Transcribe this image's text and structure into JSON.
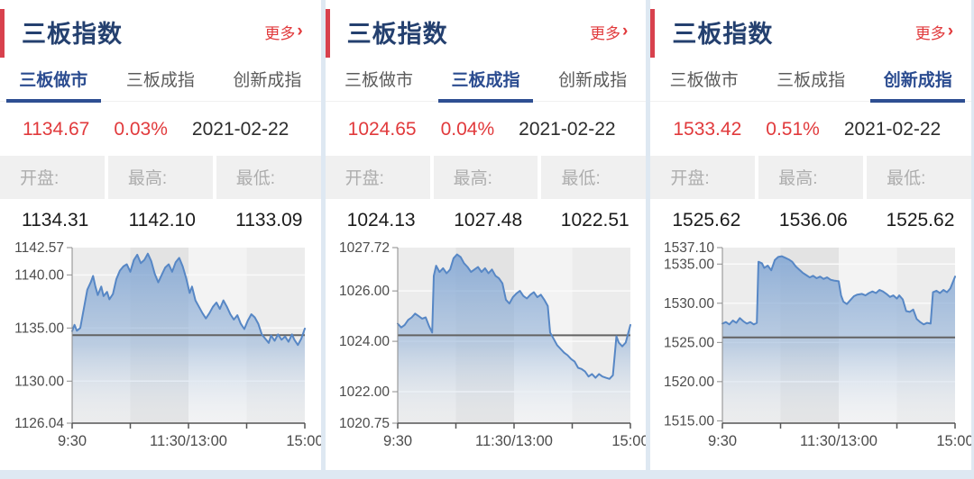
{
  "panels": [
    {
      "title": "三板指数",
      "more_label": "更多",
      "more_arrow": "›",
      "tabs": [
        {
          "label": "三板做市",
          "active": true
        },
        {
          "label": "三板成指",
          "active": false
        },
        {
          "label": "创新成指",
          "active": false
        }
      ],
      "quote": {
        "last": "1134.67",
        "change_pct": "0.03%",
        "date": "2021-02-22"
      },
      "stats": {
        "open_label": "开盘:",
        "high_label": "最高:",
        "low_label": "最低:",
        "open": "1134.31",
        "high": "1142.10",
        "low": "1133.09"
      }
    },
    {
      "title": "三板指数",
      "more_label": "更多",
      "more_arrow": "›",
      "tabs": [
        {
          "label": "三板做市",
          "active": false
        },
        {
          "label": "三板成指",
          "active": true
        },
        {
          "label": "创新成指",
          "active": false
        }
      ],
      "quote": {
        "last": "1024.65",
        "change_pct": "0.04%",
        "date": "2021-02-22"
      },
      "stats": {
        "open_label": "开盘:",
        "high_label": "最高:",
        "low_label": "最低:",
        "open": "1024.13",
        "high": "1027.48",
        "low": "1022.51"
      }
    },
    {
      "title": "三板指数",
      "more_label": "更多",
      "more_arrow": "›",
      "tabs": [
        {
          "label": "三板做市",
          "active": false
        },
        {
          "label": "三板成指",
          "active": false
        },
        {
          "label": "创新成指",
          "active": true
        }
      ],
      "quote": {
        "last": "1533.42",
        "change_pct": "0.51%",
        "date": "2021-02-22"
      },
      "stats": {
        "open_label": "开盘:",
        "high_label": "最高:",
        "low_label": "最低:",
        "open": "1525.62",
        "high": "1536.06",
        "low": "1525.62"
      }
    }
  ],
  "colors": {
    "accent_red": "#e13a3c",
    "title_blue": "#24406f",
    "active_tab_blue": "#2b4c90",
    "line_blue": "#5787c5",
    "prev_close_gray": "#636363",
    "band_light": "#ececec",
    "band_dark": "#e3e3e3",
    "band_lighter": "#f3f3f3",
    "page_bg": "#dee8f2"
  },
  "chart_data": [
    {
      "type": "area",
      "title": "三板做市",
      "ylim": [
        1126.04,
        1142.57
      ],
      "yticks": [
        {
          "v": 1142.57,
          "label": "1142.57"
        },
        {
          "v": 1140.0,
          "label": "1140.00"
        },
        {
          "v": 1135.0,
          "label": "1135.00"
        },
        {
          "v": 1130.0,
          "label": "1130.00"
        },
        {
          "v": 1126.04,
          "label": "1126.04"
        }
      ],
      "xticks": [
        {
          "pos": 0,
          "label": "9:30"
        },
        {
          "pos": 0.5,
          "label": "11:30/13:00"
        },
        {
          "pos": 1,
          "label": "15:00"
        }
      ],
      "prev_close": 1134.33,
      "line_color": "#5787c5",
      "band_colors": [
        "#ececec",
        "#e3e3e3",
        "#f3f3f3",
        "#ececec"
      ],
      "points": [
        [
          0,
          1134.7
        ],
        [
          0.01,
          1135.3
        ],
        [
          0.02,
          1134.75
        ],
        [
          0.035,
          1135.0
        ],
        [
          0.05,
          1136.8
        ],
        [
          0.065,
          1138.6
        ],
        [
          0.08,
          1139.3
        ],
        [
          0.09,
          1139.9
        ],
        [
          0.1,
          1138.9
        ],
        [
          0.11,
          1138.1
        ],
        [
          0.125,
          1138.9
        ],
        [
          0.135,
          1138.0
        ],
        [
          0.15,
          1138.4
        ],
        [
          0.16,
          1137.7
        ],
        [
          0.175,
          1138.2
        ],
        [
          0.19,
          1139.6
        ],
        [
          0.205,
          1140.4
        ],
        [
          0.22,
          1140.8
        ],
        [
          0.235,
          1141.0
        ],
        [
          0.25,
          1140.3
        ],
        [
          0.265,
          1141.4
        ],
        [
          0.28,
          1141.9
        ],
        [
          0.295,
          1141.1
        ],
        [
          0.31,
          1141.4
        ],
        [
          0.325,
          1142.0
        ],
        [
          0.34,
          1141.3
        ],
        [
          0.355,
          1140.1
        ],
        [
          0.37,
          1139.3
        ],
        [
          0.385,
          1140.0
        ],
        [
          0.4,
          1140.7
        ],
        [
          0.415,
          1141.0
        ],
        [
          0.43,
          1140.3
        ],
        [
          0.445,
          1141.2
        ],
        [
          0.46,
          1141.6
        ],
        [
          0.475,
          1140.8
        ],
        [
          0.49,
          1139.7
        ],
        [
          0.505,
          1138.3
        ],
        [
          0.515,
          1138.9
        ],
        [
          0.53,
          1137.6
        ],
        [
          0.545,
          1137.0
        ],
        [
          0.56,
          1136.4
        ],
        [
          0.575,
          1135.9
        ],
        [
          0.59,
          1136.4
        ],
        [
          0.605,
          1137.0
        ],
        [
          0.62,
          1137.4
        ],
        [
          0.635,
          1136.8
        ],
        [
          0.65,
          1137.6
        ],
        [
          0.665,
          1137.0
        ],
        [
          0.68,
          1136.3
        ],
        [
          0.695,
          1135.8
        ],
        [
          0.71,
          1136.2
        ],
        [
          0.725,
          1135.4
        ],
        [
          0.74,
          1134.9
        ],
        [
          0.755,
          1135.7
        ],
        [
          0.77,
          1136.3
        ],
        [
          0.785,
          1136.0
        ],
        [
          0.8,
          1135.4
        ],
        [
          0.815,
          1134.4
        ],
        [
          0.83,
          1134.0
        ],
        [
          0.845,
          1133.6
        ],
        [
          0.855,
          1134.3
        ],
        [
          0.87,
          1133.8
        ],
        [
          0.885,
          1134.4
        ],
        [
          0.9,
          1133.9
        ],
        [
          0.915,
          1134.2
        ],
        [
          0.93,
          1133.7
        ],
        [
          0.945,
          1134.4
        ],
        [
          0.955,
          1133.9
        ],
        [
          0.97,
          1133.4
        ],
        [
          0.985,
          1134.0
        ],
        [
          1,
          1134.95
        ]
      ]
    },
    {
      "type": "area",
      "title": "三板成指",
      "ylim": [
        1020.75,
        1027.72
      ],
      "yticks": [
        {
          "v": 1027.72,
          "label": "1027.72"
        },
        {
          "v": 1026.0,
          "label": "1026.00"
        },
        {
          "v": 1024.0,
          "label": "1024.00"
        },
        {
          "v": 1022.0,
          "label": "1022.00"
        },
        {
          "v": 1020.75,
          "label": "1020.75"
        }
      ],
      "xticks": [
        {
          "pos": 0,
          "label": "9:30"
        },
        {
          "pos": 0.5,
          "label": "11:30/13:00"
        },
        {
          "pos": 1,
          "label": "15:00"
        }
      ],
      "prev_close": 1024.24,
      "line_color": "#5787c5",
      "band_colors": [
        "#ececec",
        "#e3e3e3",
        "#f3f3f3",
        "#ececec"
      ],
      "points": [
        [
          0,
          1024.7
        ],
        [
          0.015,
          1024.55
        ],
        [
          0.03,
          1024.65
        ],
        [
          0.045,
          1024.85
        ],
        [
          0.06,
          1024.95
        ],
        [
          0.075,
          1025.1
        ],
        [
          0.09,
          1025.0
        ],
        [
          0.105,
          1024.9
        ],
        [
          0.12,
          1024.95
        ],
        [
          0.135,
          1024.6
        ],
        [
          0.148,
          1024.35
        ],
        [
          0.155,
          1026.6
        ],
        [
          0.165,
          1027.0
        ],
        [
          0.18,
          1026.75
        ],
        [
          0.195,
          1026.9
        ],
        [
          0.21,
          1026.7
        ],
        [
          0.225,
          1026.85
        ],
        [
          0.24,
          1027.3
        ],
        [
          0.255,
          1027.45
        ],
        [
          0.27,
          1027.35
        ],
        [
          0.285,
          1027.1
        ],
        [
          0.3,
          1026.95
        ],
        [
          0.315,
          1026.75
        ],
        [
          0.33,
          1026.85
        ],
        [
          0.345,
          1026.95
        ],
        [
          0.36,
          1026.75
        ],
        [
          0.375,
          1026.9
        ],
        [
          0.39,
          1026.7
        ],
        [
          0.405,
          1026.85
        ],
        [
          0.42,
          1026.6
        ],
        [
          0.435,
          1026.5
        ],
        [
          0.45,
          1026.3
        ],
        [
          0.465,
          1025.65
        ],
        [
          0.48,
          1025.5
        ],
        [
          0.495,
          1025.75
        ],
        [
          0.51,
          1025.9
        ],
        [
          0.525,
          1026.0
        ],
        [
          0.54,
          1025.8
        ],
        [
          0.555,
          1025.7
        ],
        [
          0.57,
          1025.85
        ],
        [
          0.585,
          1025.95
        ],
        [
          0.6,
          1025.75
        ],
        [
          0.615,
          1025.85
        ],
        [
          0.63,
          1025.65
        ],
        [
          0.645,
          1025.4
        ],
        [
          0.655,
          1024.35
        ],
        [
          0.67,
          1024.1
        ],
        [
          0.685,
          1023.85
        ],
        [
          0.7,
          1023.7
        ],
        [
          0.715,
          1023.55
        ],
        [
          0.73,
          1023.45
        ],
        [
          0.745,
          1023.3
        ],
        [
          0.76,
          1023.2
        ],
        [
          0.775,
          1022.95
        ],
        [
          0.79,
          1022.9
        ],
        [
          0.805,
          1022.8
        ],
        [
          0.82,
          1022.6
        ],
        [
          0.835,
          1022.7
        ],
        [
          0.85,
          1022.55
        ],
        [
          0.865,
          1022.7
        ],
        [
          0.88,
          1022.6
        ],
        [
          0.895,
          1022.55
        ],
        [
          0.91,
          1022.51
        ],
        [
          0.925,
          1022.65
        ],
        [
          0.94,
          1024.2
        ],
        [
          0.95,
          1023.95
        ],
        [
          0.965,
          1023.8
        ],
        [
          0.98,
          1023.95
        ],
        [
          1,
          1024.65
        ]
      ]
    },
    {
      "type": "area",
      "title": "创新成指",
      "ylim": [
        1514.7,
        1537.1
      ],
      "yticks": [
        {
          "v": 1537.1,
          "label": "1537.10"
        },
        {
          "v": 1535.0,
          "label": "1535.00"
        },
        {
          "v": 1530.0,
          "label": "1530.00"
        },
        {
          "v": 1525.0,
          "label": "1525.00"
        },
        {
          "v": 1520.0,
          "label": "1520.00"
        },
        {
          "v": 1515.0,
          "label": "1515.00"
        }
      ],
      "xticks": [
        {
          "pos": 0,
          "label": "9:30"
        },
        {
          "pos": 0.5,
          "label": "11:30/13:00"
        },
        {
          "pos": 1,
          "label": "15:00"
        }
      ],
      "prev_close": 1525.64,
      "line_color": "#5787c5",
      "band_colors": [
        "#ececec",
        "#e3e3e3",
        "#f3f3f3",
        "#ececec"
      ],
      "points": [
        [
          0,
          1527.4
        ],
        [
          0.015,
          1527.6
        ],
        [
          0.03,
          1527.3
        ],
        [
          0.045,
          1527.8
        ],
        [
          0.06,
          1527.5
        ],
        [
          0.075,
          1528.1
        ],
        [
          0.09,
          1527.7
        ],
        [
          0.105,
          1527.4
        ],
        [
          0.12,
          1527.6
        ],
        [
          0.135,
          1527.3
        ],
        [
          0.148,
          1527.5
        ],
        [
          0.155,
          1535.3
        ],
        [
          0.17,
          1535.1
        ],
        [
          0.18,
          1534.5
        ],
        [
          0.195,
          1534.8
        ],
        [
          0.21,
          1534.2
        ],
        [
          0.225,
          1535.5
        ],
        [
          0.24,
          1535.9
        ],
        [
          0.255,
          1536.0
        ],
        [
          0.27,
          1535.8
        ],
        [
          0.285,
          1535.6
        ],
        [
          0.3,
          1535.3
        ],
        [
          0.315,
          1534.7
        ],
        [
          0.33,
          1534.3
        ],
        [
          0.345,
          1533.9
        ],
        [
          0.36,
          1533.6
        ],
        [
          0.375,
          1533.3
        ],
        [
          0.39,
          1533.5
        ],
        [
          0.405,
          1533.2
        ],
        [
          0.42,
          1533.4
        ],
        [
          0.435,
          1533.1
        ],
        [
          0.45,
          1533.3
        ],
        [
          0.465,
          1533.0
        ],
        [
          0.48,
          1532.9
        ],
        [
          0.5,
          1532.8
        ],
        [
          0.51,
          1531.0
        ],
        [
          0.52,
          1530.2
        ],
        [
          0.535,
          1529.9
        ],
        [
          0.55,
          1530.4
        ],
        [
          0.565,
          1530.9
        ],
        [
          0.58,
          1531.1
        ],
        [
          0.6,
          1531.2
        ],
        [
          0.615,
          1531.0
        ],
        [
          0.63,
          1531.3
        ],
        [
          0.645,
          1531.5
        ],
        [
          0.66,
          1531.3
        ],
        [
          0.675,
          1531.7
        ],
        [
          0.69,
          1531.5
        ],
        [
          0.705,
          1531.2
        ],
        [
          0.72,
          1530.8
        ],
        [
          0.735,
          1531.0
        ],
        [
          0.75,
          1530.6
        ],
        [
          0.76,
          1531.0
        ],
        [
          0.775,
          1530.5
        ],
        [
          0.79,
          1529.0
        ],
        [
          0.805,
          1528.9
        ],
        [
          0.82,
          1529.2
        ],
        [
          0.835,
          1528.0
        ],
        [
          0.85,
          1527.6
        ],
        [
          0.865,
          1527.3
        ],
        [
          0.88,
          1527.5
        ],
        [
          0.895,
          1527.4
        ],
        [
          0.905,
          1531.4
        ],
        [
          0.92,
          1531.6
        ],
        [
          0.935,
          1531.3
        ],
        [
          0.95,
          1531.7
        ],
        [
          0.965,
          1531.4
        ],
        [
          0.98,
          1531.9
        ],
        [
          1,
          1533.4
        ]
      ]
    }
  ]
}
